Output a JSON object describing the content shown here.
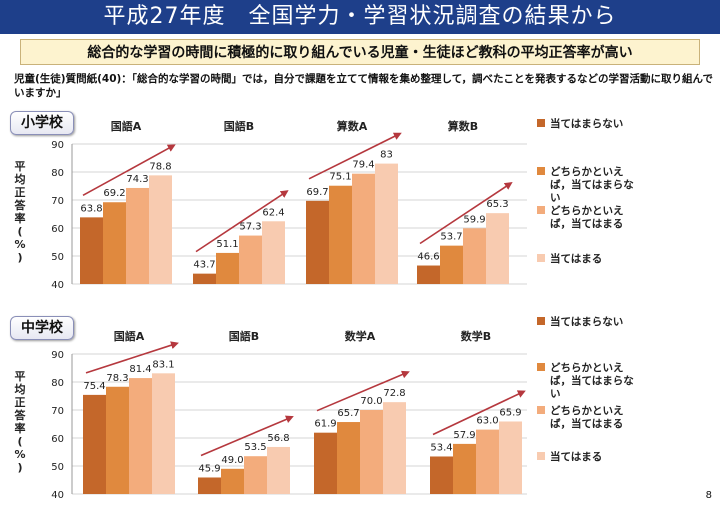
{
  "title": "平成27年度　全国学力・学習状況調査の結果から",
  "subtitle": "総合的な学習の時間に積極的に取り組んでいる児童・生徒ほど教科の平均正答率が高い",
  "question": "児童(生徒)質問紙(40)：「総合的な学習の時間」では，自分で課題を立てて情報を集め整理して，調べたことを発表するなどの学習活動に取り組んでいますか」",
  "page_number": "8",
  "colors": [
    "#c4672a",
    "#e0893e",
    "#f3ac7c",
    "#f8cbb0"
  ],
  "arrow_color": "#b5383e",
  "chart_data": [
    {
      "type": "bar",
      "school": "小学校",
      "ylabel": "平均正答率(%)",
      "ylim": [
        40,
        90
      ],
      "yticks": [
        40,
        50,
        60,
        70,
        80,
        90
      ],
      "groups": [
        {
          "subject": "国語A",
          "values": [
            63.8,
            69.2,
            74.3,
            78.8
          ],
          "labels": [
            "63.8",
            "69.2",
            "74.3",
            "78.8"
          ]
        },
        {
          "subject": "国語B",
          "values": [
            43.7,
            51.1,
            57.3,
            62.4
          ],
          "labels": [
            "43.7",
            "51.1",
            "57.3",
            "62.4"
          ]
        },
        {
          "subject": "算数A",
          "values": [
            69.7,
            75.1,
            79.4,
            83
          ],
          "labels": [
            "69.7",
            "75.1",
            "79.4",
            "83"
          ]
        },
        {
          "subject": "算数B",
          "values": [
            46.6,
            53.7,
            59.9,
            65.3
          ],
          "labels": [
            "46.6",
            "53.7",
            "59.9",
            "65.3"
          ]
        }
      ],
      "legend": [
        {
          "label": [
            "当てはまらない"
          ]
        },
        {
          "label": [
            "どちらかといえ",
            "ば，当てはまらな",
            "い"
          ]
        },
        {
          "label": [
            "どちらかといえ",
            "ば，当てはまる"
          ]
        },
        {
          "label": [
            "当てはまる"
          ]
        }
      ]
    },
    {
      "type": "bar",
      "school": "中学校",
      "ylabel": "平均正答率(%)",
      "ylim": [
        40,
        90
      ],
      "yticks": [
        40,
        50,
        60,
        70,
        80,
        90
      ],
      "groups": [
        {
          "subject": "国語A",
          "values": [
            75.4,
            78.3,
            81.4,
            83.1
          ],
          "labels": [
            "75.4",
            "78.3",
            "81.4",
            "83.1"
          ]
        },
        {
          "subject": "国語B",
          "values": [
            45.9,
            49.0,
            53.5,
            56.8
          ],
          "labels": [
            "45.9",
            "49.0",
            "53.5",
            "56.8"
          ]
        },
        {
          "subject": "数学A",
          "values": [
            61.9,
            65.7,
            70.0,
            72.8
          ],
          "labels": [
            "61.9",
            "65.7",
            "70.0",
            "72.8"
          ]
        },
        {
          "subject": "数学B",
          "values": [
            53.4,
            57.9,
            63.0,
            65.9
          ],
          "labels": [
            "53.4",
            "57.9",
            "63.0",
            "65.9"
          ]
        }
      ],
      "legend": [
        {
          "label": [
            "当てはまらない"
          ]
        },
        {
          "label": [
            "どちらかといえ",
            "ば，当てはまらな",
            "い"
          ]
        },
        {
          "label": [
            "どちらかといえ",
            "ば，当てはまる"
          ]
        },
        {
          "label": [
            "当てはまる"
          ]
        }
      ]
    }
  ]
}
